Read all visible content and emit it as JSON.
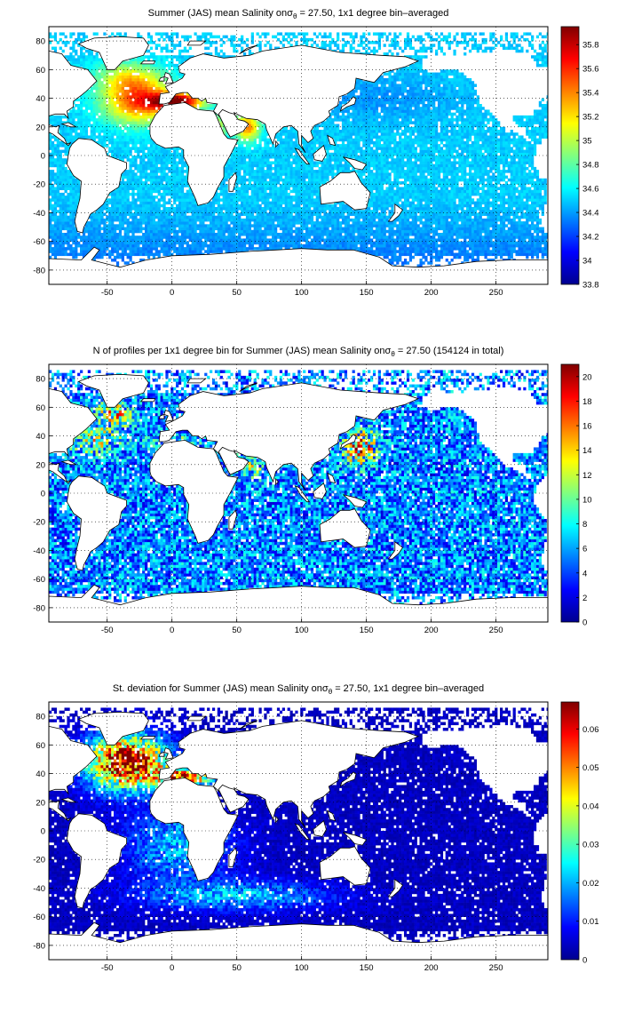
{
  "colormap": "jet",
  "chart_data": [
    {
      "type": "heatmap",
      "title_prefix": "Summer (JAS) mean Salinity on",
      "title_symbol": "σ",
      "title_subscript": "θ",
      "title_suffix": " = 27.50, 1x1 degree bin–averaged",
      "x_ticks": [
        "-50",
        "0",
        "50",
        "100",
        "150",
        "200",
        "250"
      ],
      "y_ticks": [
        "80",
        "60",
        "40",
        "20",
        "0",
        "-20",
        "-40",
        "-60",
        "-80"
      ],
      "xlim": [
        -95,
        290
      ],
      "ylim": [
        -90,
        90
      ],
      "grid": true,
      "colorbar": {
        "min": 33.8,
        "max": 35.95,
        "ticks": [
          "35.8",
          "35.6",
          "35.4",
          "35.2",
          "35",
          "34.8",
          "34.6",
          "34.4",
          "34.2",
          "34",
          "33.8"
        ]
      },
      "field": "salinity"
    },
    {
      "type": "heatmap",
      "title_prefix": "N of profiles per 1x1 degree bin for Summer (JAS) mean Salinity on",
      "title_symbol": "σ",
      "title_subscript": "θ",
      "title_suffix": " = 27.50 (154124 in total)",
      "x_ticks": [
        "-50",
        "0",
        "50",
        "100",
        "150",
        "200",
        "250"
      ],
      "y_ticks": [
        "80",
        "60",
        "40",
        "20",
        "0",
        "-20",
        "-40",
        "-60",
        "-80"
      ],
      "xlim": [
        -95,
        290
      ],
      "ylim": [
        -90,
        90
      ],
      "grid": true,
      "colorbar": {
        "min": 0,
        "max": 21,
        "ticks": [
          "20",
          "18",
          "16",
          "14",
          "12",
          "10",
          "8",
          "6",
          "4",
          "2",
          "0"
        ]
      },
      "field": "count"
    },
    {
      "type": "heatmap",
      "title_prefix": "St. deviation for Summer (JAS) mean Salinity on",
      "title_symbol": "σ",
      "title_subscript": "θ",
      "title_suffix": " = 27.50, 1x1 degree bin–averaged",
      "x_ticks": [
        "-50",
        "0",
        "50",
        "100",
        "150",
        "200",
        "250"
      ],
      "y_ticks": [
        "80",
        "60",
        "40",
        "20",
        "0",
        "-20",
        "-40",
        "-60",
        "-80"
      ],
      "xlim": [
        -95,
        290
      ],
      "ylim": [
        -90,
        90
      ],
      "grid": true,
      "colorbar": {
        "min": 0,
        "max": 0.067,
        "ticks": [
          "0.06",
          "0.05",
          "0.04",
          "0.03",
          "0.02",
          "0.01",
          "0"
        ]
      },
      "field": "stdev"
    }
  ]
}
